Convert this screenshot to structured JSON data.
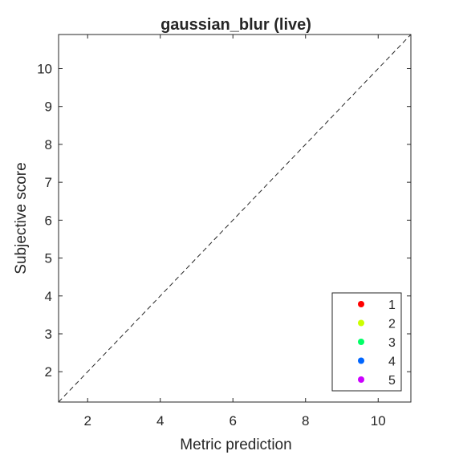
{
  "chart_data": {
    "type": "scatter",
    "title": "gaussian_blur (live)",
    "xlabel": "Metric prediction",
    "ylabel": "Subjective score",
    "xlim": [
      1.2,
      10.9
    ],
    "ylim": [
      1.2,
      10.9
    ],
    "xticks": [
      2,
      4,
      6,
      8,
      10
    ],
    "yticks": [
      2,
      3,
      4,
      5,
      6,
      7,
      8,
      9,
      10
    ],
    "xtick_labels": [
      "2",
      "4",
      "6",
      "8",
      "10"
    ],
    "ytick_labels": [
      "2",
      "3",
      "4",
      "5",
      "6",
      "7",
      "8",
      "9",
      "10"
    ],
    "reference_line": {
      "style": "dashed",
      "from": [
        1.2,
        1.2
      ],
      "to": [
        10.9,
        10.9
      ]
    },
    "grid": false,
    "legend_position": "bottom-right",
    "series": [
      {
        "name": "1",
        "color": "#ff0000",
        "points": []
      },
      {
        "name": "2",
        "color": "#ccff00",
        "points": []
      },
      {
        "name": "3",
        "color": "#00ff66",
        "points": []
      },
      {
        "name": "4",
        "color": "#0066ff",
        "points": []
      },
      {
        "name": "5",
        "color": "#cc00ff",
        "points": []
      }
    ]
  }
}
